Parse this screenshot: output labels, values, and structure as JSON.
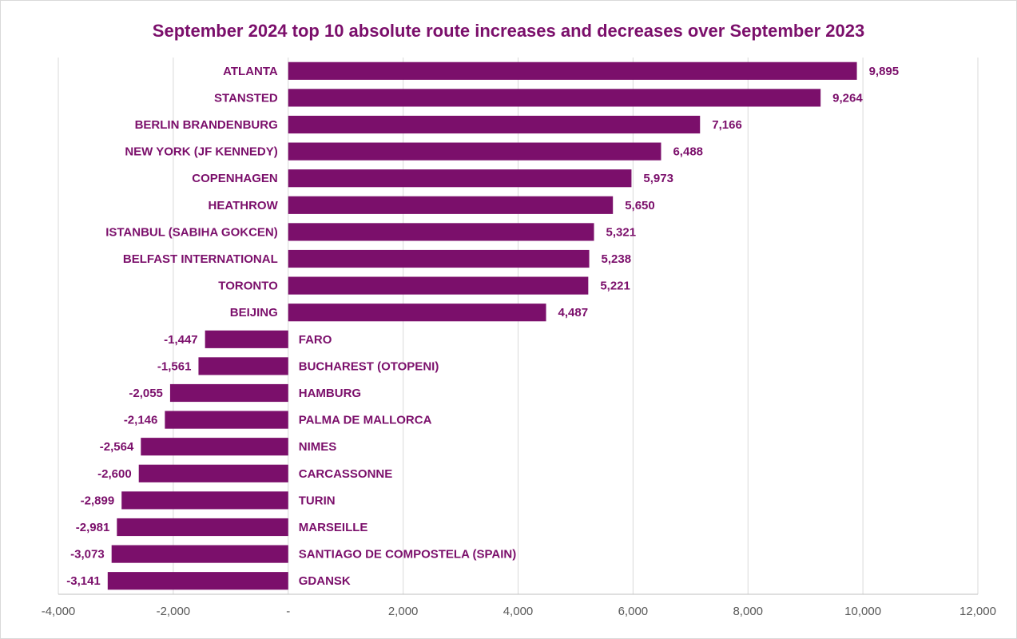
{
  "chart_data": {
    "type": "bar",
    "orientation": "horizontal",
    "title": "September 2024 top 10 absolute route increases and decreases over September 2023",
    "xlabel": "",
    "ylabel": "",
    "xlim": [
      -4000,
      12000
    ],
    "grid": true,
    "legend": "none",
    "bar_color": "#7b0f6b",
    "categories": [
      "ATLANTA",
      "STANSTED",
      "BERLIN BRANDENBURG",
      "NEW YORK (JF KENNEDY)",
      "COPENHAGEN",
      "HEATHROW",
      "ISTANBUL (SABIHA GOKCEN)",
      "BELFAST INTERNATIONAL",
      "TORONTO",
      "BEIJING",
      "FARO",
      "BUCHAREST (OTOPENI)",
      "HAMBURG",
      "PALMA DE MALLORCA",
      "NIMES",
      "CARCASSONNE",
      "TURIN",
      "MARSEILLE",
      "SANTIAGO DE COMPOSTELA (SPAIN)",
      "GDANSK"
    ],
    "values": [
      9895,
      9264,
      7166,
      6488,
      5973,
      5650,
      5321,
      5238,
      5221,
      4487,
      -1447,
      -1561,
      -2055,
      -2146,
      -2564,
      -2600,
      -2899,
      -2981,
      -3073,
      -3141
    ],
    "value_labels": [
      "9,895",
      "9,264",
      "7,166",
      "6,488",
      "5,973",
      "5,650",
      "5,321",
      "5,238",
      "5,221",
      "4,487",
      "-1,447",
      "-1,561",
      "-2,055",
      "-2,146",
      "-2,564",
      "-2,600",
      "-2,899",
      "-2,981",
      "-3,073",
      "-3,141"
    ],
    "x_ticks": [
      -4000,
      -2000,
      0,
      2000,
      4000,
      6000,
      8000,
      10000,
      12000
    ],
    "x_tick_labels": [
      "-4,000",
      "-2,000",
      "-",
      "2,000",
      "4,000",
      "6,000",
      "8,000",
      "10,000",
      "12,000"
    ]
  }
}
